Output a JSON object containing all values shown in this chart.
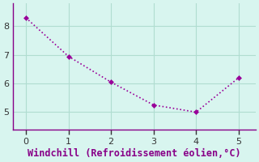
{
  "x": [
    0,
    1,
    2,
    3,
    4,
    5
  ],
  "y": [
    8.3,
    6.95,
    6.05,
    5.25,
    5.0,
    6.2
  ],
  "line_color": "#990099",
  "marker": "D",
  "marker_size": 3,
  "xlabel": "Windchill (Refroidissement éolien,°C)",
  "xlabel_color": "#880088",
  "background_color": "#d8f5ef",
  "grid_color": "#b0ddd0",
  "spine_color": "#880088",
  "tick_color": "#333333",
  "xlim": [
    -0.3,
    5.4
  ],
  "ylim": [
    4.4,
    8.8
  ],
  "xticks": [
    0,
    1,
    2,
    3,
    4,
    5
  ],
  "yticks": [
    5,
    6,
    7,
    8
  ],
  "xlabel_fontsize": 8.5,
  "tick_fontsize": 8
}
